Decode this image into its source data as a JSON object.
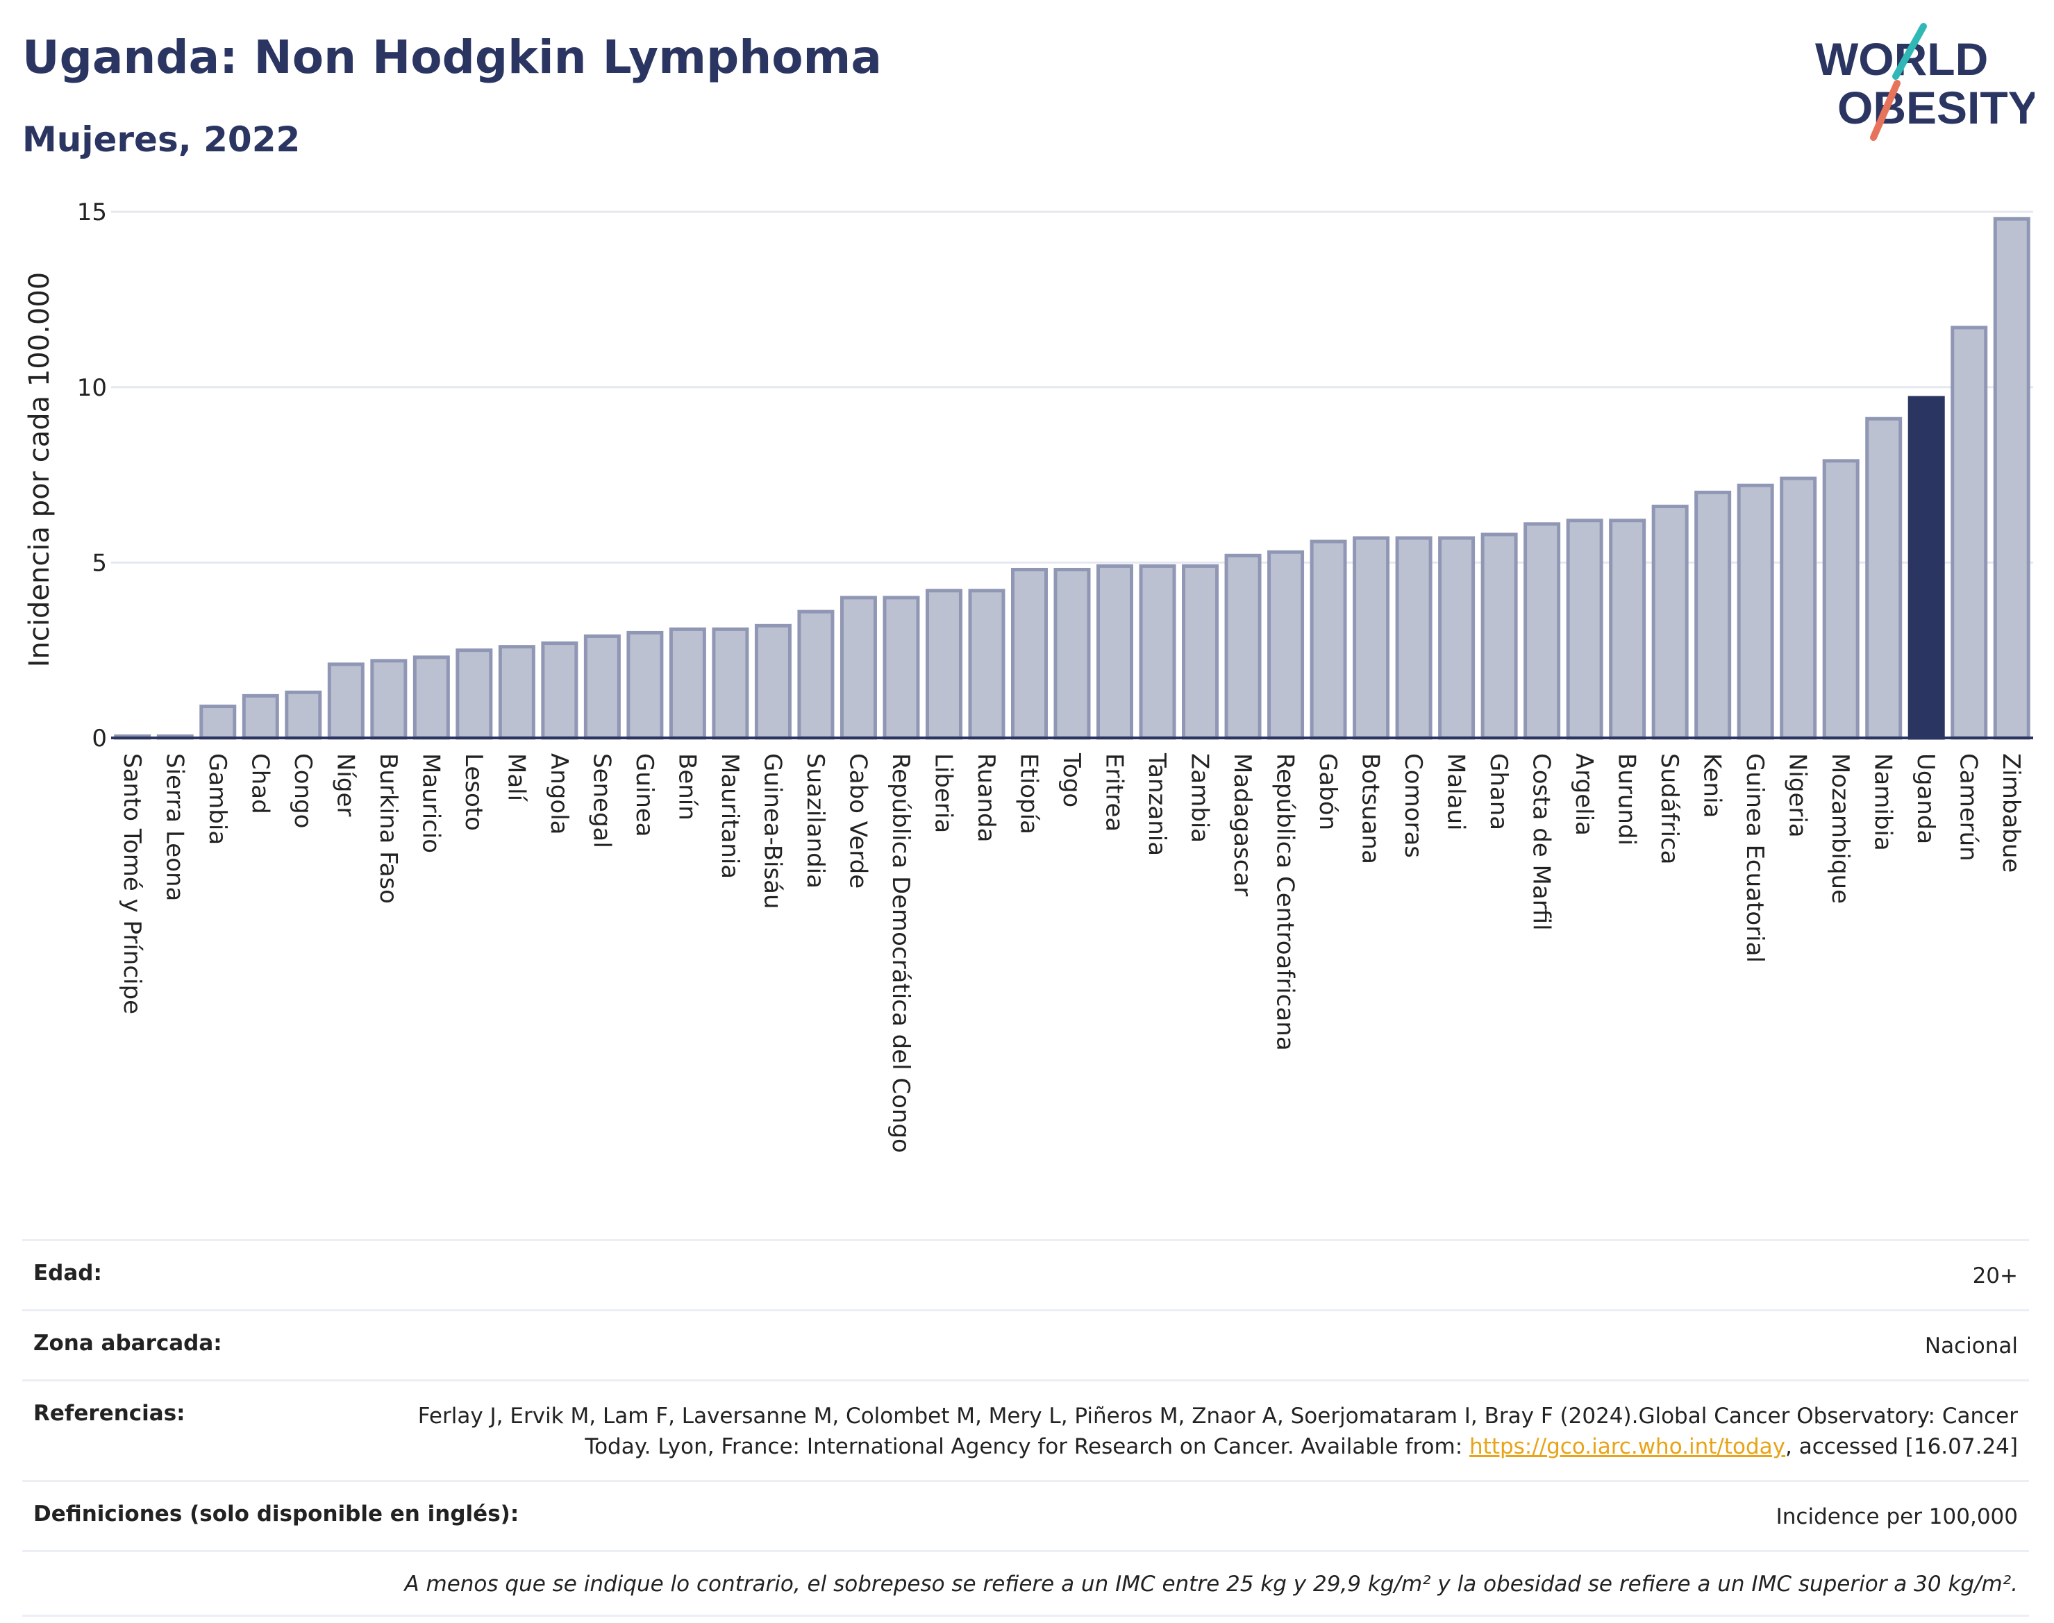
{
  "header": {
    "title": "Uganda: Non Hodgkin Lymphoma",
    "subtitle": "Mujeres, 2022"
  },
  "logo": {
    "line1": "WORLD",
    "line2": "OBESITY"
  },
  "chart_data": {
    "type": "bar",
    "title": "",
    "xlabel": "",
    "ylabel": "Incidencia por cada 100.000",
    "ylim": [
      0,
      15.3
    ],
    "yticks": [
      0,
      5,
      10,
      15
    ],
    "grid": true,
    "highlight": "Uganda",
    "colors": {
      "bar_fill": "#bcc1d1",
      "bar_stroke": "#8f97b5",
      "highlight": "#2b3561",
      "grid": "#e6e8f0",
      "axis": "#2b3561"
    },
    "categories": [
      "Santo Tomé y Príncipe",
      "Sierra Leona",
      "Gambia",
      "Chad",
      "Congo",
      "Níger",
      "Burkina Faso",
      "Mauricio",
      "Lesoto",
      "Malí",
      "Angola",
      "Senegal",
      "Guinea",
      "Benín",
      "Mauritania",
      "Guinea-Bisáu",
      "Suazilandia",
      "Cabo Verde",
      "República Democrática del Congo",
      "Liberia",
      "Ruanda",
      "Etiopía",
      "Togo",
      "Eritrea",
      "Tanzania",
      "Zambia",
      "Madagascar",
      "República Centroafricana",
      "Gabón",
      "Botsuana",
      "Comoras",
      "Malaui",
      "Ghana",
      "Costa de Marfil",
      "Argelia",
      "Burundi",
      "Sudáfrica",
      "Kenia",
      "Guinea Ecuatorial",
      "Nigeria",
      "Mozambique",
      "Namibia",
      "Uganda",
      "Camerún",
      "Zimbabue"
    ],
    "values": [
      0.05,
      0.05,
      0.9,
      1.2,
      1.3,
      2.1,
      2.2,
      2.3,
      2.5,
      2.6,
      2.7,
      2.9,
      3.0,
      3.1,
      3.1,
      3.2,
      3.6,
      4.0,
      4.0,
      4.2,
      4.2,
      4.8,
      4.8,
      4.9,
      4.9,
      4.9,
      5.2,
      5.3,
      5.6,
      5.7,
      5.7,
      5.7,
      5.8,
      6.1,
      6.2,
      6.2,
      6.6,
      7.0,
      7.2,
      7.4,
      7.9,
      9.1,
      9.7,
      11.7,
      14.8
    ]
  },
  "meta": {
    "rows": [
      {
        "label": "Edad:",
        "value": "20+"
      },
      {
        "label": "Zona abarcada:",
        "value": "Nacional"
      },
      {
        "label": "Referencias:",
        "value_pre": "Ferlay J, Ervik M, Lam F, Laversanne M, Colombet M, Mery L, Piñeros M, Znaor A, Soerjomataram I, Bray F (2024).Global Cancer Observatory: Cancer Today. Lyon, France: International Agency for Research on Cancer. Available from: ",
        "link": "https://gco.iarc.who.int/today",
        "value_post": ", accessed [16.07.24]"
      },
      {
        "label": "Definiciones (solo disponible en inglés):",
        "value": "Incidence per 100,000"
      }
    ],
    "note": "A menos que se indique lo contrario, el sobrepeso se refiere a un IMC entre 25 kg y 29,9 kg/m² y la obesidad se refiere a un IMC superior a 30 kg/m²."
  }
}
